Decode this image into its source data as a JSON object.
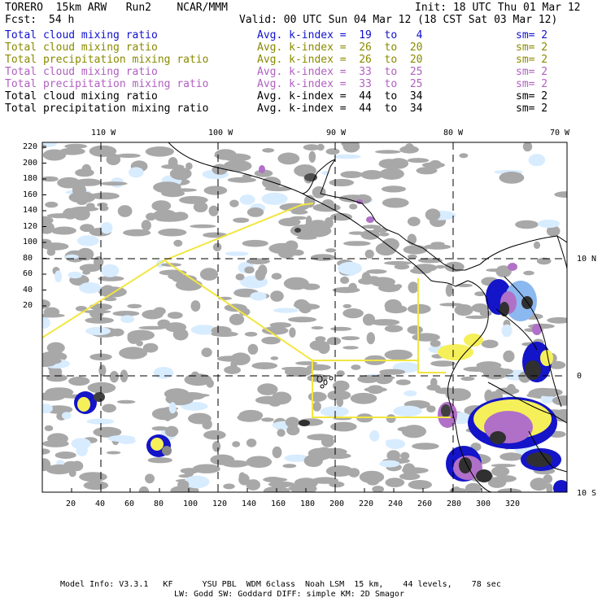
{
  "header": {
    "model": "TORERO  15km ARW   Run2    NCAR/MMM",
    "init": "Init: 18 UTC Thu 01 Mar 12",
    "fcst_label": "Fcst:",
    "fcst_hours": "54 h",
    "valid": "Valid: 00 UTC Sun 04 Mar 12 (18 CST Sat 03 Mar 12)"
  },
  "legend": [
    {
      "field": "Total cloud mixing ratio",
      "kindex": "Avg. k-index =  19  to   4",
      "sm": "sm= 2",
      "color": "#1010d0"
    },
    {
      "field": "Total cloud mixing ratio",
      "kindex": "Avg. k-index =  26  to  20",
      "sm": "sm= 2",
      "color": "#8a8a00"
    },
    {
      "field": "Total precipitation mixing ratio",
      "kindex": "Avg. k-index =  26  to  20",
      "sm": "sm= 2",
      "color": "#8a8a00"
    },
    {
      "field": "Total cloud mixing ratio",
      "kindex": "Avg. k-index =  33  to  25",
      "sm": "sm= 2",
      "color": "#b060c0"
    },
    {
      "field": "Total precipitation mixing ratio",
      "kindex": "Avg. k-index =  33  to  25",
      "sm": "sm= 2",
      "color": "#b060c0"
    },
    {
      "field": "Total cloud mixing ratio",
      "kindex": "Avg. k-index =  44  to  34",
      "sm": "sm= 2",
      "color": "#000000"
    },
    {
      "field": "Total precipitation mixing ratio",
      "kindex": "Avg. k-index =  44  to  34",
      "sm": "sm= 2",
      "color": "#000000"
    }
  ],
  "axes": {
    "lon_labels": [
      "110 W",
      "100 W",
      "90 W",
      "80 W",
      "70 W"
    ],
    "lat_labels": [
      "10 N",
      "0",
      "10 S"
    ],
    "x_ticks": [
      "20",
      "40",
      "60",
      "80",
      "100",
      "120",
      "140",
      "160",
      "180",
      "200",
      "220",
      "240",
      "260",
      "280",
      "300",
      "320"
    ],
    "y_ticks": [
      "220",
      "200",
      "180",
      "160",
      "140",
      "120",
      "100",
      "80",
      "60",
      "40",
      "20"
    ]
  },
  "colors": {
    "cloud_gray": "#a8a8a8",
    "cloud_light": "#d8ecff",
    "mid_blue": "#8cb8f0",
    "dark_blue": "#1414c8",
    "yellow": "#f5f05a",
    "purple": "#b070c8",
    "black_core": "#303030",
    "boundary_yellow": "#f2e640"
  },
  "footer": {
    "line1": "Model Info: V3.3.1   KF      YSU PBL  WDM 6class  Noah LSM  15 km,    44 levels,    78 sec",
    "line2": "LW: Godd SW: Goddard DIFF: simple KM: 2D Smagor"
  }
}
